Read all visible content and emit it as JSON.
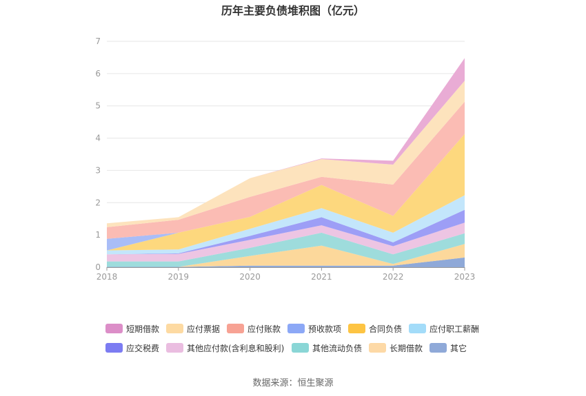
{
  "chart_data": {
    "type": "area",
    "stacked": true,
    "title": "历年主要负债堆积图（亿元）",
    "x": [
      "2018",
      "2019",
      "2020",
      "2021",
      "2022",
      "2023"
    ],
    "ylim": [
      0,
      7
    ],
    "yticks": [
      "0",
      "1",
      "2",
      "3",
      "4",
      "5",
      "6",
      "7"
    ],
    "xlabel": "",
    "ylabel": "",
    "grid": true,
    "series": [
      {
        "name": "其它",
        "color": "#8fa9d8",
        "values": [
          0.01,
          0.01,
          0.05,
          0.05,
          0.05,
          0.3
        ]
      },
      {
        "name": "长期借款",
        "color": "#fcd89b",
        "values": [
          0.0,
          0.0,
          0.3,
          0.62,
          0.05,
          0.42
        ]
      },
      {
        "name": "其他流动负债",
        "color": "#9edcdc",
        "values": [
          0.17,
          0.17,
          0.25,
          0.4,
          0.3,
          0.33
        ]
      },
      {
        "name": "其他应付款(含利息和股利)",
        "color": "#edc5e3",
        "values": [
          0.22,
          0.23,
          0.25,
          0.23,
          0.25,
          0.33
        ]
      },
      {
        "name": "应交税费",
        "color": "#9d9ef6",
        "values": [
          0.0,
          0.02,
          0.12,
          0.25,
          0.12,
          0.4
        ]
      },
      {
        "name": "应付职工薪酬",
        "color": "#c3e6fb",
        "values": [
          0.12,
          0.12,
          0.22,
          0.28,
          0.3,
          0.45
        ]
      },
      {
        "name": "合同负债",
        "color": "#fdd87e",
        "values": [
          0.0,
          0.52,
          0.37,
          0.72,
          0.52,
          1.9
        ]
      },
      {
        "name": "预收款项",
        "color": "#a9bdf7",
        "values": [
          0.36,
          0.0,
          0.0,
          0.0,
          0.0,
          0.0
        ]
      },
      {
        "name": "应付账款",
        "color": "#fbbcb4",
        "values": [
          0.36,
          0.4,
          0.62,
          0.25,
          0.97,
          1.0
        ]
      },
      {
        "name": "应付票据",
        "color": "#fde3bd",
        "values": [
          0.12,
          0.08,
          0.58,
          0.55,
          0.62,
          0.65
        ]
      },
      {
        "name": "短期借款",
        "color": "#e9acd5",
        "values": [
          0.0,
          0.0,
          0.0,
          0.02,
          0.12,
          0.7
        ]
      }
    ]
  },
  "legend": [
    {
      "label": "短期借款",
      "color": "#dc8ec8"
    },
    {
      "label": "应付票据",
      "color": "#fddaa2"
    },
    {
      "label": "应付账款",
      "color": "#f7a294"
    },
    {
      "label": "预收款项",
      "color": "#8ca8f6"
    },
    {
      "label": "合同负债",
      "color": "#fdc443"
    },
    {
      "label": "应付职工薪酬",
      "color": "#a3dcf9"
    },
    {
      "label": "应交税费",
      "color": "#7c7cf2"
    },
    {
      "label": "其他应付款(含利息和股利)",
      "color": "#eabde0"
    },
    {
      "label": "其他流动负债",
      "color": "#8ad6d6"
    },
    {
      "label": "长期借款",
      "color": "#fdd9a6"
    },
    {
      "label": "其它",
      "color": "#8fa9d8"
    }
  ],
  "source": "数据来源：恒生聚源"
}
